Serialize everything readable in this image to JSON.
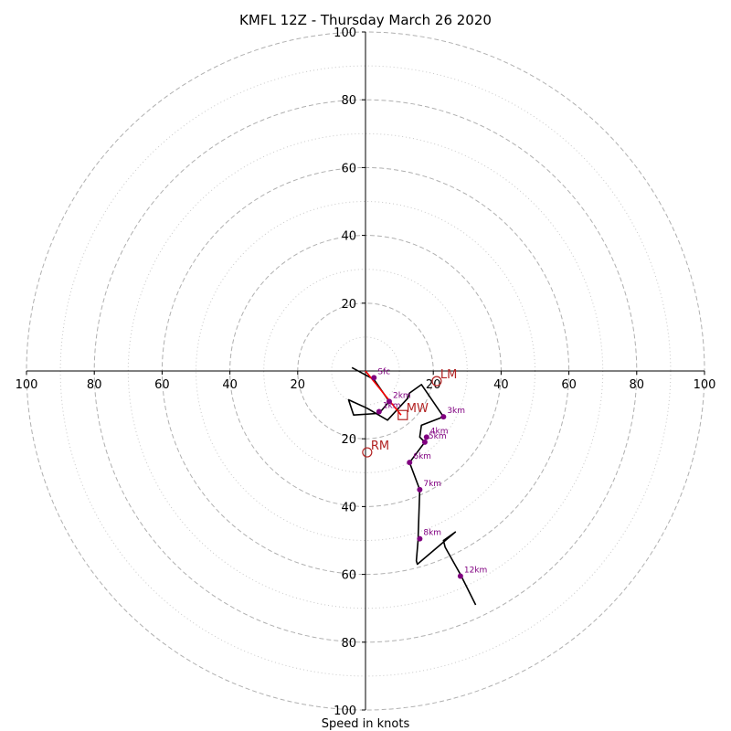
{
  "chart_data": {
    "type": "scatter",
    "title": "KMFL 12Z - Thursday March 26 2020",
    "xlabel": "Speed in knots",
    "ylabel": "",
    "xlim": [
      -100,
      100
    ],
    "ylim": [
      -100,
      100
    ],
    "tick_labels": [
      "100",
      "80",
      "60",
      "40",
      "20",
      "20",
      "40",
      "60",
      "80",
      "100"
    ],
    "y_tick_labels": [
      "100",
      "80",
      "60",
      "40",
      "20",
      "20",
      "40",
      "60",
      "80",
      "100"
    ],
    "ring_major": [
      20,
      40,
      60,
      80,
      100
    ],
    "ring_minor": [
      10,
      30,
      50,
      70,
      90
    ],
    "grid": true,
    "colors": {
      "hodograph": "#000000",
      "height_points": "#800080",
      "motion": "#b22222",
      "mean_shear": "#ff0000",
      "ring": "#b0b0b0"
    },
    "hodograph": {
      "u": [
        -4,
        2.5,
        7,
        4,
        -3.5,
        -5,
        0.5,
        6.5,
        12.5,
        13,
        16.5,
        23,
        16.5,
        16,
        17.5,
        13,
        16,
        15.5,
        15,
        15.3,
        26.5,
        23,
        23.5,
        28,
        32.5
      ],
      "v": [
        1,
        -2.5,
        -9,
        -12.5,
        -13,
        -8.5,
        -11,
        -14.5,
        -8,
        -6.5,
        -4,
        -13.5,
        -16,
        -19.5,
        -21,
        -27,
        -35,
        -50,
        -56,
        -57,
        -47.5,
        -50,
        -52,
        -60,
        -69
      ]
    },
    "height_points": [
      {
        "label": "Sfc",
        "u": 2.5,
        "v": -2
      },
      {
        "label": "1km",
        "u": 4,
        "v": -12
      },
      {
        "label": "2km",
        "u": 7,
        "v": -9
      },
      {
        "label": "3km",
        "u": 23,
        "v": -13.5
      },
      {
        "label": "4km",
        "u": 18,
        "v": -19.5
      },
      {
        "label": "5km",
        "u": 17.5,
        "v": -21
      },
      {
        "label": "6km",
        "u": 13,
        "v": -27
      },
      {
        "label": "7km",
        "u": 16,
        "v": -35
      },
      {
        "label": "8km",
        "u": 16,
        "v": -49.5
      },
      {
        "label": "12km",
        "u": 28,
        "v": -60.5
      }
    ],
    "storm_motion": [
      {
        "label": "LM",
        "u": 21,
        "v": -3,
        "marker": "circle"
      },
      {
        "label": "MW",
        "u": 11,
        "v": -13,
        "marker": "square"
      },
      {
        "label": "RM",
        "u": 0.5,
        "v": -24,
        "marker": "circle"
      }
    ],
    "mean_shear": {
      "u": [
        0,
        10.5
      ],
      "v": [
        0,
        -13
      ]
    }
  }
}
